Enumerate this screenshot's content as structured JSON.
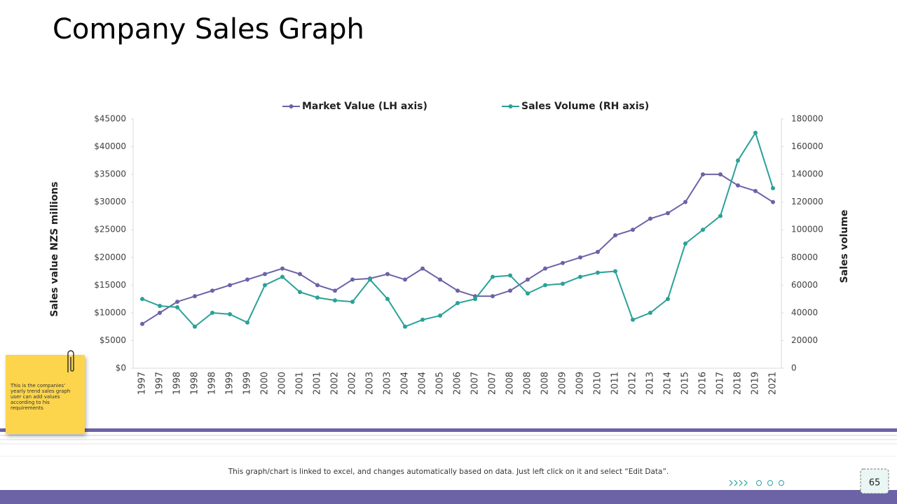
{
  "title": "Company Sales Graph",
  "note": "This is the companies' yearly trend sales graph user can add values according to his requirements",
  "footer": "This graph/chart is linked to excel, and changes automatically based on data. Just left click on it and select “Edit Data”.",
  "page_number": "65",
  "chart_data": {
    "type": "line",
    "y_label": "Sales value NZS millions",
    "y2_label": "Sales  volume",
    "categories": [
      "1997",
      "1997",
      "1998",
      "1998",
      "1998",
      "1999",
      "1999",
      "2000",
      "2000",
      "2001",
      "2001",
      "2002",
      "2002",
      "2003",
      "2003",
      "2004",
      "2004",
      "2005",
      "2006",
      "2007",
      "2007",
      "2008",
      "2008",
      "2008",
      "2009",
      "2009",
      "2010",
      "2011",
      "2012",
      "2013",
      "2014",
      "2015",
      "2016",
      "2017",
      "2018",
      "2019",
      "2021"
    ],
    "series": [
      {
        "name": "Market Value (LH axis)",
        "color": "#6b63a6",
        "axis": "y",
        "values": [
          8000,
          10000,
          12000,
          13000,
          14000,
          15000,
          16000,
          17000,
          18000,
          17000,
          15000,
          14000,
          16000,
          16200,
          17000,
          16000,
          18000,
          16000,
          14000,
          13000,
          13000,
          14000,
          16000,
          18000,
          19000,
          20000,
          21000,
          24000,
          25000,
          27000,
          28000,
          30000,
          35000,
          35000,
          33000,
          32000,
          30000
        ]
      },
      {
        "name": "Sales Volume (RH axis)",
        "color": "#2aa198",
        "axis": "y2",
        "values": [
          50000,
          45000,
          44000,
          30000,
          40000,
          39000,
          33000,
          60000,
          66000,
          55000,
          51000,
          49000,
          48000,
          64000,
          50000,
          30000,
          35000,
          38000,
          47000,
          50000,
          66000,
          67000,
          54000,
          60000,
          61000,
          66000,
          69000,
          70000,
          35000,
          40000,
          50000,
          90000,
          100000,
          110000,
          150000,
          170000,
          130000
        ]
      }
    ],
    "ylim": [
      0,
      45000
    ],
    "yticks": [
      {
        "value": 0,
        "label": "$0"
      },
      {
        "value": 5000,
        "label": "$5000"
      },
      {
        "value": 10000,
        "label": "$10000"
      },
      {
        "value": 15000,
        "label": "$15000"
      },
      {
        "value": 20000,
        "label": "$20000"
      },
      {
        "value": 25000,
        "label": "$25000"
      },
      {
        "value": 30000,
        "label": "$30000"
      },
      {
        "value": 35000,
        "label": "$35000"
      },
      {
        "value": 40000,
        "label": "$40000"
      },
      {
        "value": 45000,
        "label": "$45000"
      }
    ],
    "y2lim": [
      0,
      180000
    ],
    "y2ticks": [
      0,
      20000,
      40000,
      60000,
      80000,
      100000,
      120000,
      140000,
      160000,
      180000
    ],
    "grid": false
  }
}
